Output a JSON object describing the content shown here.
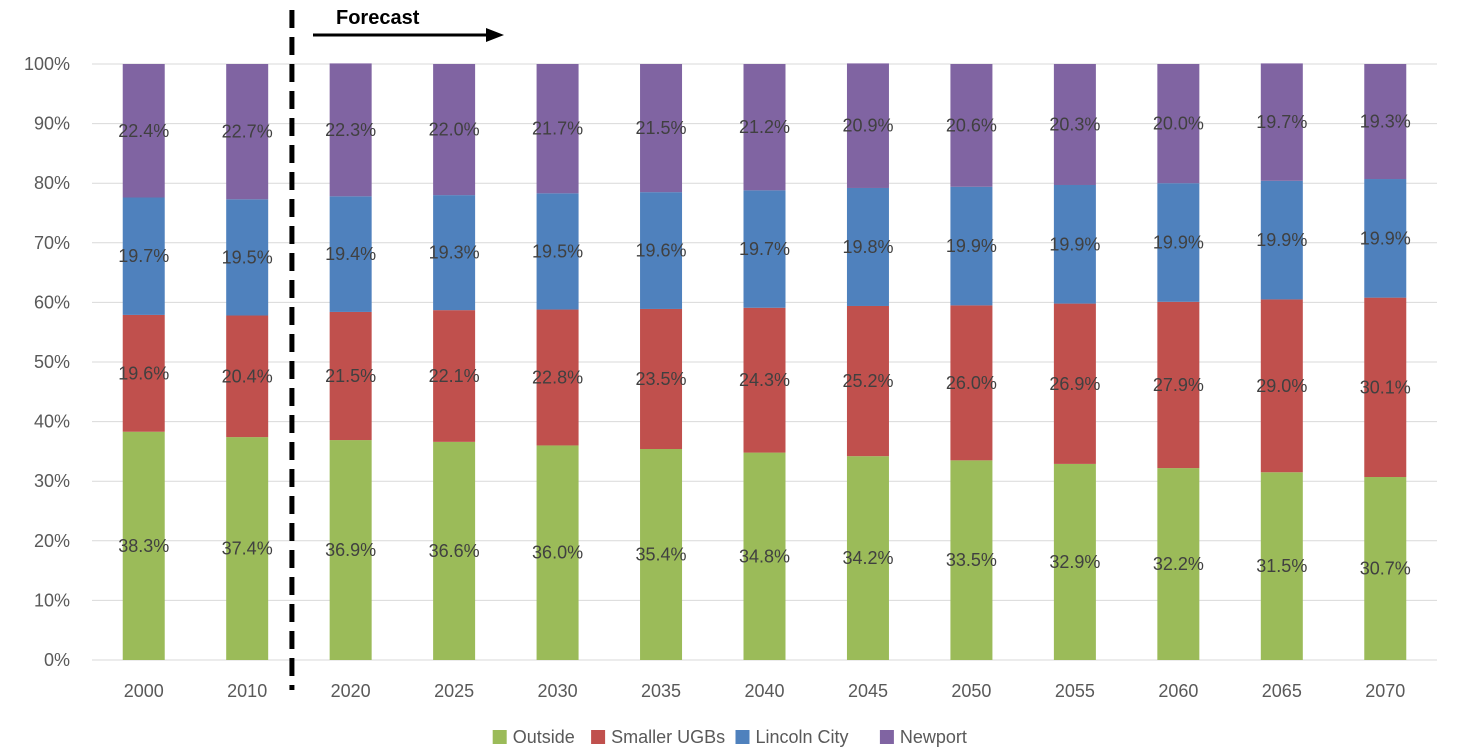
{
  "chart_data": {
    "type": "bar",
    "stacked": true,
    "percent": true,
    "categories": [
      "2000",
      "2010",
      "2020",
      "2025",
      "2030",
      "2035",
      "2040",
      "2045",
      "2050",
      "2055",
      "2060",
      "2065",
      "2070"
    ],
    "series": [
      {
        "name": "Outside",
        "color": "#9BBB59",
        "values": [
          38.3,
          37.4,
          36.9,
          36.6,
          36.0,
          35.4,
          34.8,
          34.2,
          33.5,
          32.9,
          32.2,
          31.5,
          30.7
        ],
        "labels": [
          "38.3%",
          "37.4%",
          "36.9%",
          "36.6%",
          "36.0%",
          "35.4%",
          "34.8%",
          "34.2%",
          "33.5%",
          "32.9%",
          "32.2%",
          "31.5%",
          "30.7%"
        ]
      },
      {
        "name": "Smaller UGBs",
        "color": "#C0504D",
        "values": [
          19.6,
          20.4,
          21.5,
          22.1,
          22.8,
          23.5,
          24.3,
          25.2,
          26.0,
          26.9,
          27.9,
          29.0,
          30.1
        ],
        "labels": [
          "19.6%",
          "20.4%",
          "21.5%",
          "22.1%",
          "22.8%",
          "23.5%",
          "24.3%",
          "25.2%",
          "26.0%",
          "26.9%",
          "27.9%",
          "29.0%",
          "30.1%"
        ]
      },
      {
        "name": "Lincoln City",
        "color": "#4F81BD",
        "values": [
          19.7,
          19.5,
          19.4,
          19.3,
          19.5,
          19.6,
          19.7,
          19.8,
          19.9,
          19.9,
          19.9,
          19.9,
          19.9
        ],
        "labels": [
          "19.7%",
          "19.5%",
          "19.4%",
          "19.3%",
          "19.5%",
          "19.6%",
          "19.7%",
          "19.8%",
          "19.9%",
          "19.9%",
          "19.9%",
          "19.9%",
          "19.9%"
        ]
      },
      {
        "name": "Newport",
        "color": "#8064A2",
        "values": [
          22.4,
          22.7,
          22.3,
          22.0,
          21.7,
          21.5,
          21.2,
          20.9,
          20.6,
          20.3,
          20.0,
          19.7,
          19.3
        ],
        "labels": [
          "22.4%",
          "22.7%",
          "22.3%",
          "22.0%",
          "21.7%",
          "21.5%",
          "21.2%",
          "20.9%",
          "20.6%",
          "20.3%",
          "20.0%",
          "19.7%",
          "19.3%"
        ]
      }
    ],
    "ylim": [
      0,
      100
    ],
    "yticks": [
      "0%",
      "10%",
      "20%",
      "30%",
      "40%",
      "50%",
      "60%",
      "70%",
      "80%",
      "90%",
      "100%"
    ],
    "grid": true,
    "legend_position": "bottom",
    "annotation": {
      "text": "Forecast",
      "divider_after_category": "2010"
    },
    "title": "",
    "xlabel": "",
    "ylabel": ""
  }
}
